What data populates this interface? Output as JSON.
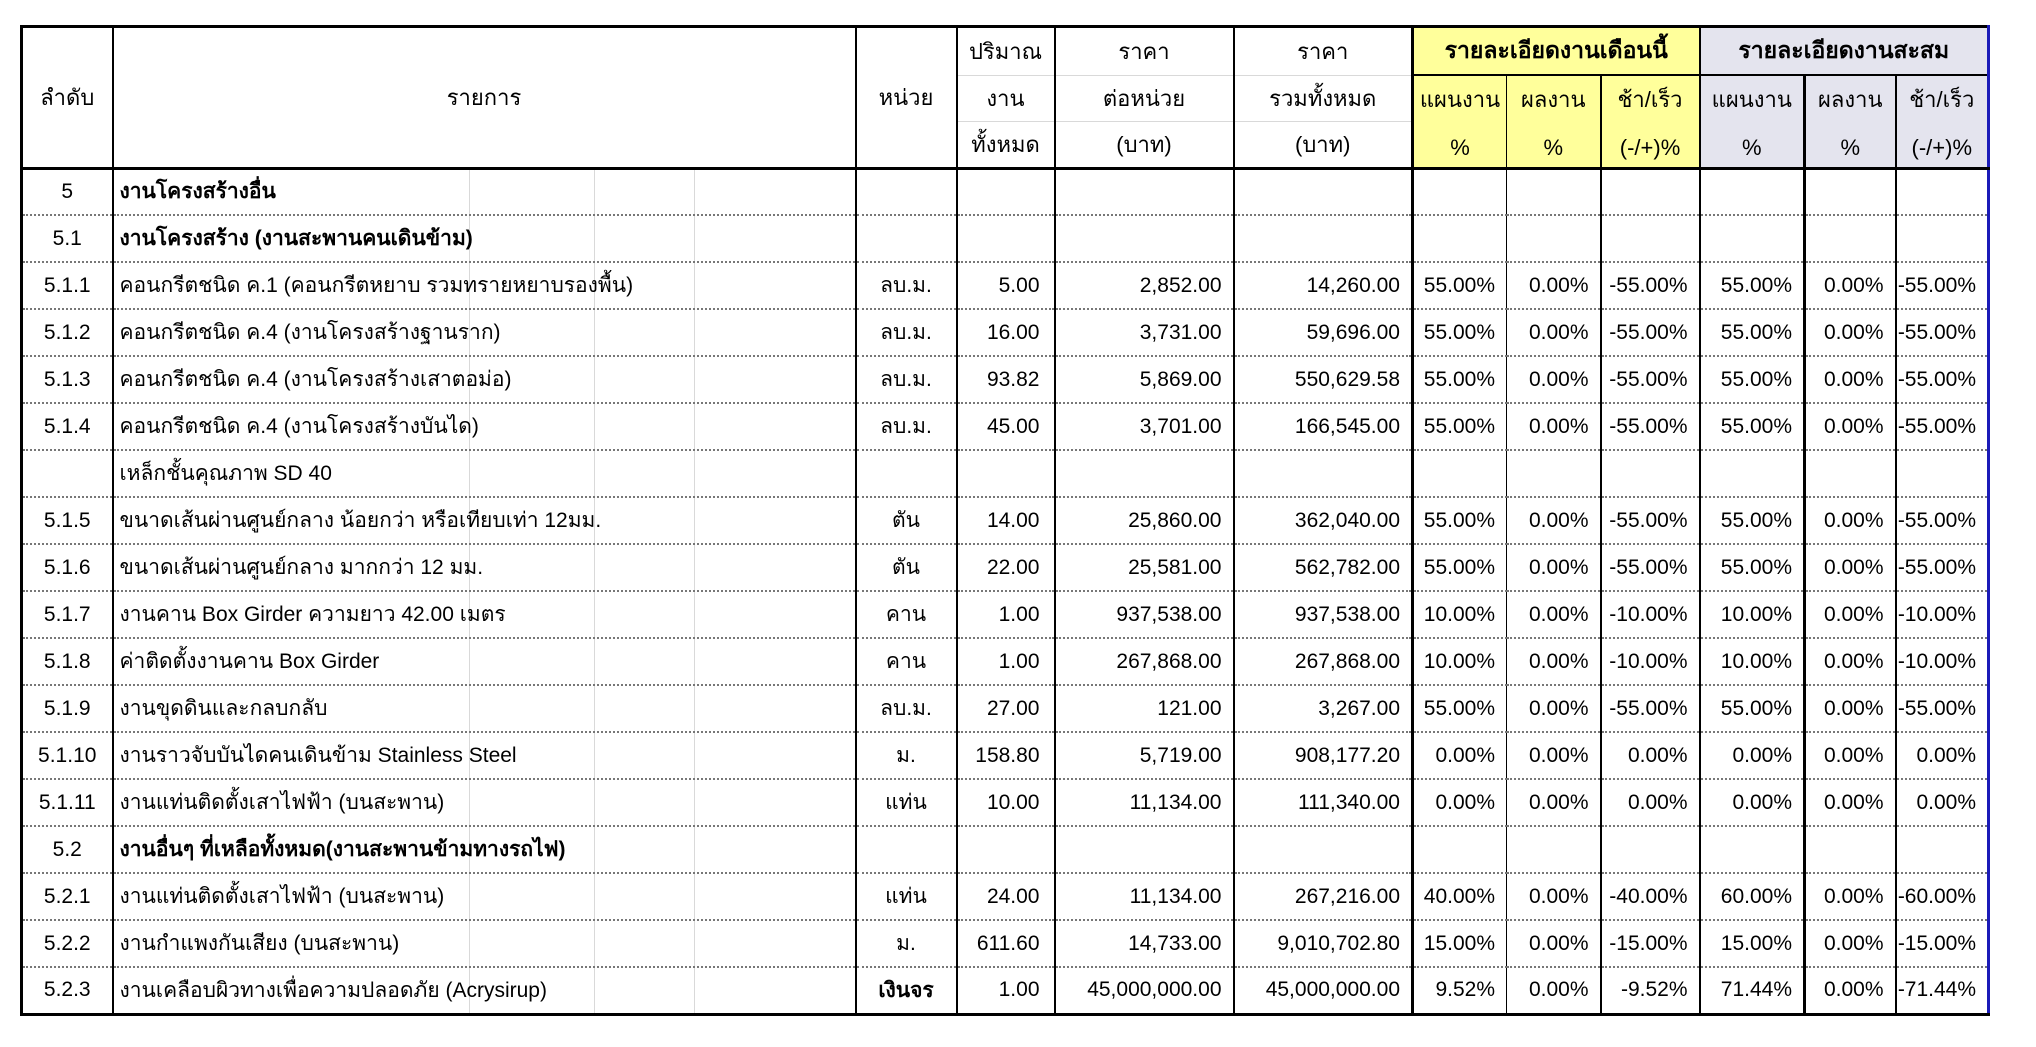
{
  "colors": {
    "month_header_bg": "#ffff9b",
    "cum_header_bg": "#e4e4ee",
    "table_right_border": "#1b1bb8"
  },
  "table": {
    "headers": {
      "no": "ลำดับ",
      "description": "รายการ",
      "unit": "หน่วย",
      "qty_lines": [
        "ปริมาณ",
        "งาน",
        "ทั้งหมด"
      ],
      "unit_price_lines": [
        "ราคา",
        "ต่อหน่วย",
        "(บาท)"
      ],
      "total_price_lines": [
        "ราคา",
        "รวมทั้งหมด",
        "(บาท)"
      ],
      "month_group": "รายละเอียดงานเดือนนี้",
      "cum_group": "รายละเอียดงานสะสม",
      "plan": "แผนงาน",
      "actual": "ผลงาน",
      "diff": "ช้า/เร็ว",
      "pct": "%",
      "diff_pct": "(-/+)%"
    },
    "rows": [
      {
        "no": "5",
        "desc": "งานโครงสร้างอื่น",
        "unit": "",
        "qty": "",
        "unit_price": "",
        "total_price": "",
        "m_plan": "",
        "m_act": "",
        "m_diff": "",
        "c_plan": "",
        "c_act": "",
        "c_diff": "",
        "section": true
      },
      {
        "no": "5.1",
        "desc": "งานโครงสร้าง (งานสะพานคนเดินข้าม)",
        "unit": "",
        "qty": "",
        "unit_price": "",
        "total_price": "",
        "m_plan": "",
        "m_act": "",
        "m_diff": "",
        "c_plan": "",
        "c_act": "",
        "c_diff": "",
        "section": true
      },
      {
        "no": "5.1.1",
        "desc": "คอนกรีตชนิด ค.1 (คอนกรีตหยาบ รวมทรายหยาบรองพื้น)",
        "unit": "ลบ.ม.",
        "qty": "5.00",
        "unit_price": "2,852.00",
        "total_price": "14,260.00",
        "m_plan": "55.00%",
        "m_act": "0.00%",
        "m_diff": "-55.00%",
        "c_plan": "55.00%",
        "c_act": "0.00%",
        "c_diff": "-55.00%"
      },
      {
        "no": "5.1.2",
        "desc": "คอนกรีตชนิด ค.4 (งานโครงสร้างฐานราก)",
        "unit": "ลบ.ม.",
        "qty": "16.00",
        "unit_price": "3,731.00",
        "total_price": "59,696.00",
        "m_plan": "55.00%",
        "m_act": "0.00%",
        "m_diff": "-55.00%",
        "c_plan": "55.00%",
        "c_act": "0.00%",
        "c_diff": "-55.00%"
      },
      {
        "no": "5.1.3",
        "desc": "คอนกรีตชนิด ค.4 (งานโครงสร้างเสาตอม่อ)",
        "unit": "ลบ.ม.",
        "qty": "93.82",
        "unit_price": "5,869.00",
        "total_price": "550,629.58",
        "m_plan": "55.00%",
        "m_act": "0.00%",
        "m_diff": "-55.00%",
        "c_plan": "55.00%",
        "c_act": "0.00%",
        "c_diff": "-55.00%"
      },
      {
        "no": "5.1.4",
        "desc": "คอนกรีตชนิด ค.4 (งานโครงสร้างบันได)",
        "unit": "ลบ.ม.",
        "qty": "45.00",
        "unit_price": "3,701.00",
        "total_price": "166,545.00",
        "m_plan": "55.00%",
        "m_act": "0.00%",
        "m_diff": "-55.00%",
        "c_plan": "55.00%",
        "c_act": "0.00%",
        "c_diff": "-55.00%"
      },
      {
        "no": "",
        "desc": "เหล็กชั้นคุณภาพ SD 40",
        "unit": "",
        "qty": "",
        "unit_price": "",
        "total_price": "",
        "m_plan": "",
        "m_act": "",
        "m_diff": "",
        "c_plan": "",
        "c_act": "",
        "c_diff": ""
      },
      {
        "no": "5.1.5",
        "desc": "ขนาดเส้นผ่านศูนย์กลาง น้อยกว่า หรือเทียบเท่า 12มม.",
        "unit": "ตัน",
        "qty": "14.00",
        "unit_price": "25,860.00",
        "total_price": "362,040.00",
        "m_plan": "55.00%",
        "m_act": "0.00%",
        "m_diff": "-55.00%",
        "c_plan": "55.00%",
        "c_act": "0.00%",
        "c_diff": "-55.00%"
      },
      {
        "no": "5.1.6",
        "desc": "ขนาดเส้นผ่านศูนย์กลาง มากกว่า 12 มม.",
        "unit": "ตัน",
        "qty": "22.00",
        "unit_price": "25,581.00",
        "total_price": "562,782.00",
        "m_plan": "55.00%",
        "m_act": "0.00%",
        "m_diff": "-55.00%",
        "c_plan": "55.00%",
        "c_act": "0.00%",
        "c_diff": "-55.00%"
      },
      {
        "no": "5.1.7",
        "desc": "งานคาน Box Girder ความยาว 42.00 เมตร",
        "unit": "คาน",
        "qty": "1.00",
        "unit_price": "937,538.00",
        "total_price": "937,538.00",
        "m_plan": "10.00%",
        "m_act": "0.00%",
        "m_diff": "-10.00%",
        "c_plan": "10.00%",
        "c_act": "0.00%",
        "c_diff": "-10.00%"
      },
      {
        "no": "5.1.8",
        "desc": "ค่าติดตั้งงานคาน Box Girder",
        "unit": "คาน",
        "qty": "1.00",
        "unit_price": "267,868.00",
        "total_price": "267,868.00",
        "m_plan": "10.00%",
        "m_act": "0.00%",
        "m_diff": "-10.00%",
        "c_plan": "10.00%",
        "c_act": "0.00%",
        "c_diff": "-10.00%"
      },
      {
        "no": "5.1.9",
        "desc": "งานขุดดินและกลบกลับ",
        "unit": "ลบ.ม.",
        "qty": "27.00",
        "unit_price": "121.00",
        "total_price": "3,267.00",
        "m_plan": "55.00%",
        "m_act": "0.00%",
        "m_diff": "-55.00%",
        "c_plan": "55.00%",
        "c_act": "0.00%",
        "c_diff": "-55.00%"
      },
      {
        "no": "5.1.10",
        "desc": "งานราวจับบันไดคนเดินข้าม Stainless Steel",
        "unit": "ม.",
        "qty": "158.80",
        "unit_price": "5,719.00",
        "total_price": "908,177.20",
        "m_plan": "0.00%",
        "m_act": "0.00%",
        "m_diff": "0.00%",
        "c_plan": "0.00%",
        "c_act": "0.00%",
        "c_diff": "0.00%"
      },
      {
        "no": "5.1.11",
        "desc": "งานแท่นติดตั้งเสาไฟฟ้า (บนสะพาน)",
        "unit": "แท่น",
        "qty": "10.00",
        "unit_price": "11,134.00",
        "total_price": "111,340.00",
        "m_plan": "0.00%",
        "m_act": "0.00%",
        "m_diff": "0.00%",
        "c_plan": "0.00%",
        "c_act": "0.00%",
        "c_diff": "0.00%"
      },
      {
        "no": "5.2",
        "desc": "งานอื่นๆ ที่เหลือทั้งหมด(งานสะพานข้ามทางรถไฟ)",
        "unit": "",
        "qty": "",
        "unit_price": "",
        "total_price": "",
        "m_plan": "",
        "m_act": "",
        "m_diff": "",
        "c_plan": "",
        "c_act": "",
        "c_diff": "",
        "section": true
      },
      {
        "no": "5.2.1",
        "desc": "งานแท่นติดตั้งเสาไฟฟ้า (บนสะพาน)",
        "unit": "แท่น",
        "qty": "24.00",
        "unit_price": "11,134.00",
        "total_price": "267,216.00",
        "m_plan": "40.00%",
        "m_act": "0.00%",
        "m_diff": "-40.00%",
        "c_plan": "60.00%",
        "c_act": "0.00%",
        "c_diff": "-60.00%"
      },
      {
        "no": "5.2.2",
        "desc": "งานกำแพงกันเสียง (บนสะพาน)",
        "unit": "ม.",
        "qty": "611.60",
        "unit_price": "14,733.00",
        "total_price": "9,010,702.80",
        "m_plan": "15.00%",
        "m_act": "0.00%",
        "m_diff": "-15.00%",
        "c_plan": "15.00%",
        "c_act": "0.00%",
        "c_diff": "-15.00%"
      },
      {
        "no": "5.2.3",
        "desc": "งานเคลือบผิวทางเพื่อความปลอดภัย (Acrysirup)",
        "unit": "เงินจร",
        "qty": "1.00",
        "unit_price": "45,000,000.00",
        "total_price": "45,000,000.00",
        "m_plan": "9.52%",
        "m_act": "0.00%",
        "m_diff": "-9.52%",
        "c_plan": "71.44%",
        "c_act": "0.00%",
        "c_diff": "-71.44%",
        "unit_bold": true
      }
    ]
  }
}
